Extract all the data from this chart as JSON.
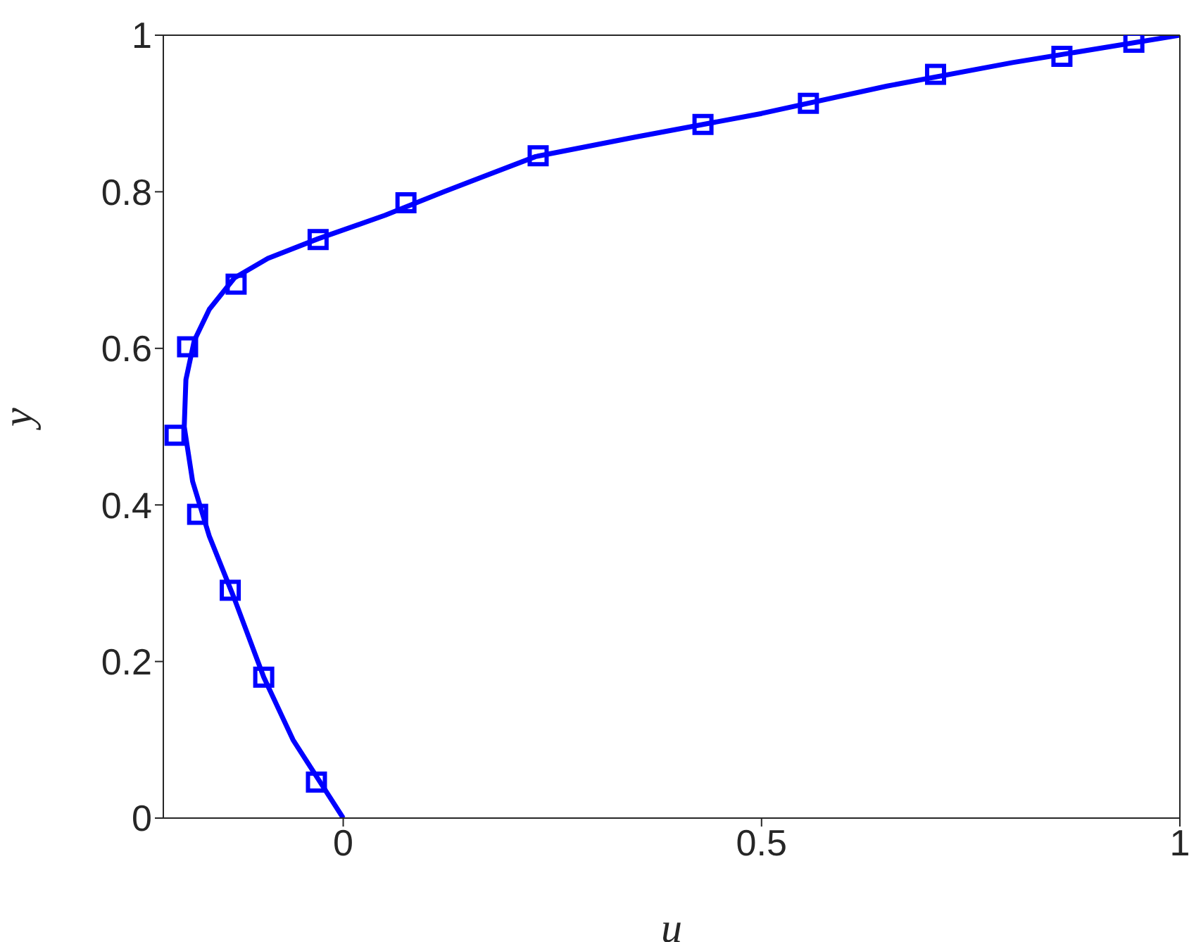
{
  "chart_data": {
    "type": "line",
    "xlabel": "u",
    "ylabel": "y",
    "xlim": [
      -0.215,
      1
    ],
    "xticks": [
      0,
      0.5,
      1
    ],
    "ylim": [
      0,
      1
    ],
    "yticks": [
      0,
      0.2,
      0.4,
      0.6,
      0.8,
      1
    ],
    "series": [
      {
        "color": "#0000ff",
        "marker": "none",
        "line_style": "solid",
        "x": [
          0,
          -0.03,
          -0.06,
          -0.095,
          -0.13,
          -0.16,
          -0.18,
          -0.19,
          -0.188,
          -0.178,
          -0.16,
          -0.13,
          -0.09,
          -0.03,
          0.05,
          0.12,
          0.23,
          0.35,
          0.5,
          0.65,
          0.8,
          1
        ],
        "values": [
          0,
          0.05,
          0.1,
          0.18,
          0.28,
          0.36,
          0.43,
          0.5,
          0.56,
          0.61,
          0.65,
          0.69,
          0.715,
          0.74,
          0.77,
          0.8,
          0.845,
          0.87,
          0.9,
          0.935,
          0.965,
          1
        ]
      },
      {
        "type": "scatter",
        "color": "#0000ff",
        "marker": "square",
        "x": [
          -0.032,
          -0.095,
          -0.135,
          -0.174,
          -0.201,
          -0.186,
          -0.128,
          -0.03,
          0.075,
          0.233,
          0.43,
          0.556,
          0.708,
          0.859,
          0.945
        ],
        "values": [
          0.046,
          0.18,
          0.291,
          0.388,
          0.489,
          0.602,
          0.682,
          0.739,
          0.786,
          0.846,
          0.886,
          0.913,
          0.95,
          0.973,
          0.991
        ]
      }
    ]
  }
}
